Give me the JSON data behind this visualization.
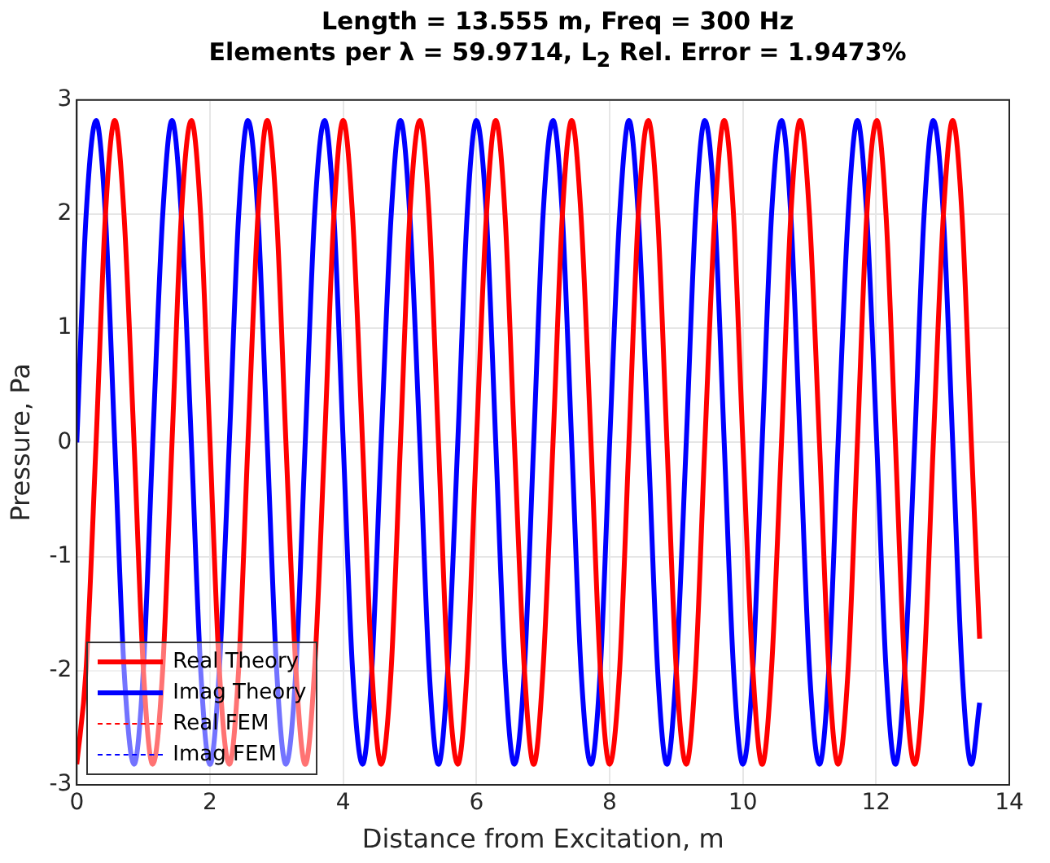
{
  "chart_data": {
    "type": "line",
    "title": "Length = 13.555 m, Freq = 300 Hz",
    "subtitle": "Elements per λ = 59.9714, L$_{2}$ Rel. Error = 1.9473%",
    "xlabel": "Distance from Excitation, m",
    "ylabel": "Pressure, Pa",
    "x": [
      0,
      0.14,
      0.29,
      0.43,
      0.57,
      0.71,
      0.86,
      1.0,
      1.14,
      1.29,
      1.43,
      1.57,
      1.72,
      1.86,
      2.0,
      2.14,
      2.29,
      2.43,
      2.57,
      2.72,
      2.86,
      3.0,
      3.14,
      3.29,
      3.43,
      3.57,
      3.72,
      3.86,
      4.0,
      4.14,
      4.29,
      4.43,
      4.57,
      4.72,
      4.86,
      5.0,
      5.15,
      5.29,
      5.43,
      5.57,
      5.72,
      5.86,
      6.0,
      6.15,
      6.29,
      6.43,
      6.57,
      6.72,
      6.86,
      7.0,
      7.15,
      7.29,
      7.43,
      7.57,
      7.72,
      7.86,
      8.0,
      8.15,
      8.29,
      8.43,
      8.58,
      8.72,
      8.86,
      9.0,
      9.15,
      9.29,
      9.43,
      9.58,
      9.72,
      9.86,
      10.0,
      10.15,
      10.29,
      10.43,
      10.58,
      10.72,
      10.86,
      11.0,
      11.15,
      11.29,
      11.43,
      11.58,
      11.72,
      11.86,
      12.01,
      12.15,
      12.29,
      12.43,
      12.58,
      12.72,
      12.86,
      13.01,
      13.15,
      13.29,
      13.43,
      13.555
    ],
    "series": [
      {
        "name": "Real Theory",
        "color": "#ff0000",
        "line_style": "solid",
        "values": [
          -2.82,
          -1.99,
          0,
          1.99,
          2.82,
          1.99,
          0,
          -1.99,
          -2.82,
          -1.99,
          0,
          1.99,
          2.82,
          1.99,
          0,
          -1.99,
          -2.82,
          -1.99,
          0,
          1.99,
          2.82,
          1.99,
          0,
          -1.99,
          -2.82,
          -1.99,
          0,
          1.99,
          2.82,
          1.99,
          0,
          -1.99,
          -2.82,
          -1.99,
          0,
          1.99,
          2.82,
          1.99,
          0,
          -1.99,
          -2.82,
          -1.99,
          0,
          1.99,
          2.82,
          1.99,
          0,
          -1.99,
          -2.82,
          -1.99,
          0,
          1.99,
          2.82,
          1.99,
          0,
          -1.99,
          -2.82,
          -1.99,
          0,
          1.99,
          2.82,
          1.99,
          0,
          -1.99,
          -2.82,
          -1.99,
          0,
          1.99,
          2.82,
          1.99,
          0,
          -1.99,
          -2.82,
          -1.99,
          0,
          1.99,
          2.82,
          1.99,
          0,
          -1.99,
          -2.82,
          -1.99,
          0,
          1.99,
          2.82,
          1.99,
          0,
          -1.99,
          -2.82,
          -1.99,
          0,
          1.99,
          2.82,
          1.99,
          0,
          -1.72
        ]
      },
      {
        "name": "Imag Theory",
        "color": "#0000ff",
        "line_style": "solid",
        "values": [
          0,
          1.99,
          2.82,
          1.99,
          0,
          -1.99,
          -2.82,
          -1.99,
          0,
          1.99,
          2.82,
          1.99,
          0,
          -1.99,
          -2.82,
          -1.99,
          0,
          1.99,
          2.82,
          1.99,
          0,
          -1.99,
          -2.82,
          -1.99,
          0,
          1.99,
          2.82,
          1.99,
          0,
          -1.99,
          -2.82,
          -1.99,
          0,
          1.99,
          2.82,
          1.99,
          0,
          -1.99,
          -2.82,
          -1.99,
          0,
          1.99,
          2.82,
          1.99,
          0,
          -1.99,
          -2.82,
          -1.99,
          0,
          1.99,
          2.82,
          1.99,
          0,
          -1.99,
          -2.82,
          -1.99,
          0,
          1.99,
          2.82,
          1.99,
          0,
          -1.99,
          -2.82,
          -1.99,
          0,
          1.99,
          2.82,
          1.99,
          0,
          -1.99,
          -2.82,
          -1.99,
          0,
          1.99,
          2.82,
          1.99,
          0,
          -1.99,
          -2.82,
          -1.99,
          0,
          1.99,
          2.82,
          1.99,
          0,
          -1.99,
          -2.82,
          -1.99,
          0,
          1.99,
          2.82,
          1.99,
          0,
          -1.99,
          -2.82,
          -2.28
        ]
      },
      {
        "name": "Real FEM",
        "color": "#ff0000",
        "line_style": "dashed",
        "values": [
          null,
          null,
          null,
          null,
          null,
          null,
          null,
          null,
          null,
          null,
          null,
          null,
          null,
          null,
          null,
          null,
          null,
          null,
          null,
          null,
          null,
          null,
          null,
          null,
          null,
          null,
          null,
          null,
          null,
          null,
          null,
          null,
          null,
          null,
          null,
          null,
          null,
          null,
          null,
          null,
          null,
          null,
          null,
          null,
          null,
          null,
          null,
          null,
          null,
          null,
          null,
          null,
          null,
          null,
          null,
          null,
          null,
          null,
          null,
          null,
          null,
          null,
          null,
          null,
          null,
          null,
          null,
          null,
          null,
          null,
          null,
          null,
          null,
          null,
          null,
          null,
          null,
          null,
          null,
          null,
          null,
          null,
          null,
          null,
          null,
          null,
          null,
          null,
          null,
          null,
          null,
          null,
          null,
          null,
          null,
          null
        ]
      },
      {
        "name": "Imag FEM",
        "color": "#0000ff",
        "line_style": "dashed",
        "values": [
          null,
          null,
          null,
          null,
          null,
          null,
          null,
          null,
          null,
          null,
          null,
          null,
          null,
          null,
          null,
          null,
          null,
          null,
          null,
          null,
          null,
          null,
          null,
          null,
          null,
          null,
          null,
          null,
          null,
          null,
          null,
          null,
          null,
          null,
          null,
          null,
          null,
          null,
          null,
          null,
          null,
          null,
          null,
          null,
          null,
          null,
          null,
          null,
          null,
          null,
          null,
          null,
          null,
          null,
          null,
          null,
          null,
          null,
          null,
          null,
          null,
          null,
          null,
          null,
          null,
          null,
          null,
          null,
          null,
          null,
          null,
          null,
          null,
          null,
          null,
          null,
          null,
          null,
          null,
          null,
          null,
          null,
          null,
          null,
          null,
          null,
          null,
          null,
          null,
          null,
          null,
          null,
          null,
          null,
          null,
          null
        ]
      }
    ],
    "xlim": [
      0,
      14
    ],
    "xticks": [
      0,
      2,
      4,
      6,
      8,
      10,
      12,
      14
    ],
    "ylim": [
      -3,
      3
    ],
    "yticks": [
      -3,
      -2,
      -1,
      0,
      1,
      2,
      3
    ],
    "grid": true,
    "legend": "bottom left",
    "marker": "none"
  }
}
